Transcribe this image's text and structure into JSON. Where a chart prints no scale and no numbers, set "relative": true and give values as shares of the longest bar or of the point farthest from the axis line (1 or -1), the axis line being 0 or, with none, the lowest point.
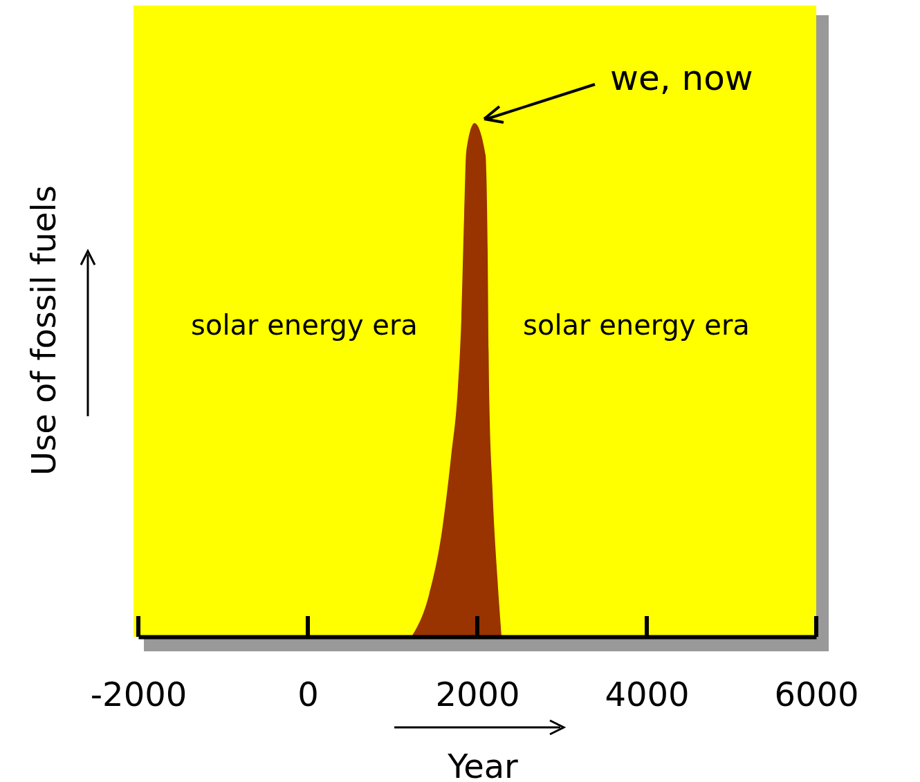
{
  "chart_data": {
    "type": "area",
    "relative": true,
    "xlabel": "Year",
    "ylabel": "Use of fossil fuels",
    "x": [
      1224,
      1429,
      1592,
      1690,
      1771,
      1812,
      1845,
      1869,
      1967,
      2098,
      2122,
      2139,
      2180,
      2237,
      2286
    ],
    "series": [
      {
        "color": "#993300",
        "values": [
          0,
          0.081,
          0.216,
          0.35,
          0.485,
          0.62,
          0.822,
          0.943,
          1,
          0.937,
          0.755,
          0.485,
          0.283,
          0.115,
          0
        ]
      }
    ],
    "xlim": [
      -2000,
      6000
    ],
    "xticks": [
      -2000,
      0,
      2000,
      4000,
      6000
    ],
    "annotations": [
      "we, now",
      "solar energy era",
      "solar energy era"
    ]
  }
}
